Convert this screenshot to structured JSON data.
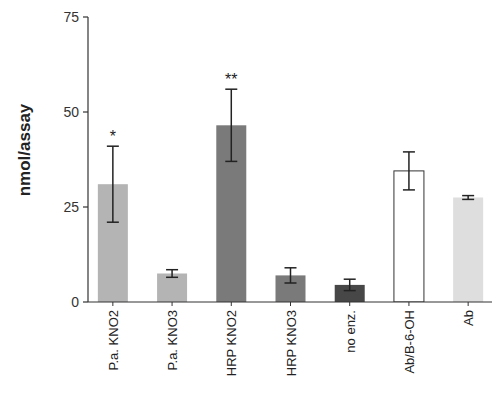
{
  "chart_data": {
    "type": "bar",
    "y_label": "nmol/assay",
    "categories": [
      "P.a. KNO2",
      "P.a. KNO3",
      "HRP KNO2",
      "HRP KNO3",
      "no enz.",
      "Ab/B-6-OH",
      "Ab"
    ],
    "values": [
      31,
      7.5,
      46.5,
      7,
      4.5,
      34.5,
      27.5
    ],
    "errors": [
      10,
      1,
      9.5,
      2,
      1.5,
      5,
      0.5
    ],
    "annotations": [
      "*",
      null,
      "**",
      null,
      null,
      null,
      null
    ],
    "colors": [
      "#b4b4b4",
      "#b4b4b4",
      "#7a7a7a",
      "#7a7a7a",
      "#474747",
      "#ffffff",
      "#dedede"
    ],
    "ylim": [
      0,
      75
    ],
    "yticks": [
      0,
      25,
      50,
      75
    ],
    "grid": false
  }
}
